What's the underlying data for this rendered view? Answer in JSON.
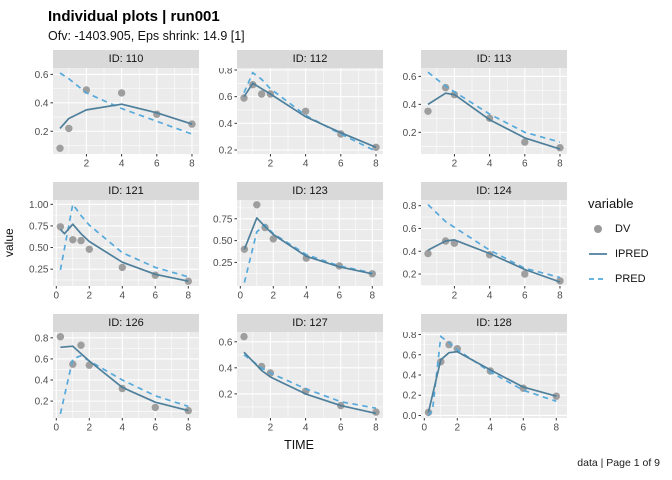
{
  "header": {
    "title": "Individual plots | run001",
    "subtitle": "Ofv: -1403.905, Eps shrink: 14.9 [1]"
  },
  "axes": {
    "x_label": "TIME",
    "y_label": "value"
  },
  "caption": "data | Page 1 of 9",
  "legend": {
    "title": "variable",
    "entries": [
      {
        "label": "DV",
        "type": "point"
      },
      {
        "label": "IPRED",
        "type": "solid"
      },
      {
        "label": "PRED",
        "type": "dashed"
      }
    ]
  },
  "colors": {
    "dv": "#9A9A9A",
    "ipred": "#4E7F9B",
    "pred": "#56A9DB",
    "panel_bg": "#EBEBEB",
    "strip_bg": "#D9D9D9",
    "grid": "#FFFFFF",
    "tick": "#333333",
    "tick_label": "#4D4D4D"
  },
  "chart_data": {
    "type": "line",
    "title": "Individual plots | run001",
    "xlabel": "TIME",
    "ylabel": "value",
    "legend_position": "right",
    "series_meaning": {
      "DV": "observed points",
      "IPRED": "solid line",
      "PRED": "dashed line"
    },
    "facets": [
      {
        "id_label": "ID: 110",
        "xlim": [
          0.1,
          8.4
        ],
        "ylim": [
          0.04,
          0.645
        ],
        "x_ticks": [
          2,
          4,
          6,
          8
        ],
        "x_tick_labels": [
          "2",
          "4",
          "6",
          "8"
        ],
        "y_ticks": [
          0.2,
          0.4,
          0.6
        ],
        "y_tick_labels": [
          "0.2",
          "0.4",
          "0.6"
        ],
        "dv": {
          "x": [
            0.5,
            1,
            2,
            4,
            6,
            8
          ],
          "y": [
            0.08,
            0.22,
            0.49,
            0.47,
            0.32,
            0.25
          ]
        },
        "ipred": {
          "x": [
            0.5,
            1,
            2,
            4,
            6,
            8
          ],
          "y": [
            0.22,
            0.29,
            0.35,
            0.39,
            0.33,
            0.25
          ]
        },
        "pred": {
          "x": [
            0.5,
            1,
            2,
            4,
            6,
            8
          ],
          "y": [
            0.61,
            0.57,
            0.47,
            0.36,
            0.27,
            0.18
          ]
        }
      },
      {
        "id_label": "ID: 112",
        "xlim": [
          0.1,
          8.4
        ],
        "ylim": [
          0.17,
          0.815
        ],
        "x_ticks": [
          2,
          4,
          6,
          8
        ],
        "x_tick_labels": [
          "2",
          "4",
          "6",
          "8"
        ],
        "y_ticks": [
          0.2,
          0.4,
          0.6,
          0.8
        ],
        "y_tick_labels": [
          "0.2",
          "0.4",
          "0.6",
          "0.8"
        ],
        "dv": {
          "x": [
            0.5,
            1,
            1.5,
            2,
            4,
            6,
            8
          ],
          "y": [
            0.59,
            0.69,
            0.62,
            0.62,
            0.49,
            0.32,
            0.22
          ]
        },
        "ipred": {
          "x": [
            0.5,
            1,
            1.5,
            2,
            4,
            6,
            8
          ],
          "y": [
            0.6,
            0.7,
            0.66,
            0.62,
            0.45,
            0.33,
            0.22
          ]
        },
        "pred": {
          "x": [
            0.5,
            1,
            1.5,
            2,
            4,
            6,
            8
          ],
          "y": [
            0.63,
            0.78,
            0.73,
            0.66,
            0.46,
            0.32,
            0.19
          ]
        }
      },
      {
        "id_label": "ID: 113",
        "xlim": [
          0.1,
          8.4
        ],
        "ylim": [
          0.045,
          0.66
        ],
        "x_ticks": [
          2,
          4,
          6,
          8
        ],
        "x_tick_labels": [
          "2",
          "4",
          "6",
          "8"
        ],
        "y_ticks": [
          0.2,
          0.4,
          0.6
        ],
        "y_tick_labels": [
          "0.2",
          "0.4",
          "0.6"
        ],
        "dv": {
          "x": [
            0.5,
            1.5,
            2,
            4,
            6,
            8
          ],
          "y": [
            0.35,
            0.52,
            0.47,
            0.3,
            0.13,
            0.09
          ]
        },
        "ipred": {
          "x": [
            0.5,
            1.5,
            2,
            4,
            6,
            8
          ],
          "y": [
            0.4,
            0.48,
            0.47,
            0.29,
            0.16,
            0.08
          ]
        },
        "pred": {
          "x": [
            0.5,
            1.5,
            2,
            4,
            6,
            8
          ],
          "y": [
            0.63,
            0.53,
            0.49,
            0.33,
            0.2,
            0.13
          ]
        }
      },
      {
        "id_label": "ID: 121",
        "xlim": [
          -0.2,
          8.65
        ],
        "ylim": [
          0.055,
          1.05
        ],
        "x_ticks": [
          0,
          2,
          4,
          6,
          8
        ],
        "x_tick_labels": [
          "0",
          "2",
          "4",
          "6",
          "8"
        ],
        "y_ticks": [
          0.25,
          0.5,
          0.75,
          1.0
        ],
        "y_tick_labels": [
          "0.25",
          "0.50",
          "0.75",
          "1.00"
        ],
        "dv": {
          "x": [
            0.25,
            1,
            1.5,
            2,
            4,
            6,
            8
          ],
          "y": [
            0.74,
            0.59,
            0.58,
            0.48,
            0.27,
            0.18,
            0.11
          ]
        },
        "ipred": {
          "x": [
            0.25,
            0.5,
            1,
            1.5,
            2,
            4,
            6,
            8
          ],
          "y": [
            0.71,
            0.66,
            0.77,
            0.66,
            0.57,
            0.33,
            0.19,
            0.11
          ]
        },
        "pred": {
          "x": [
            0.25,
            1,
            1.5,
            2,
            4,
            6,
            8
          ],
          "y": [
            0.24,
            1.0,
            0.87,
            0.76,
            0.44,
            0.27,
            0.16
          ]
        }
      },
      {
        "id_label": "ID: 123",
        "xlim": [
          -0.2,
          8.65
        ],
        "ylim": [
          -0.02,
          0.965
        ],
        "x_ticks": [
          0,
          2,
          4,
          6,
          8
        ],
        "x_tick_labels": [
          "0",
          "2",
          "4",
          "6",
          "8"
        ],
        "y_ticks": [
          0.25,
          0.5,
          0.75
        ],
        "y_tick_labels": [
          "0.25",
          "0.50",
          "0.75"
        ],
        "dv": {
          "x": [
            0.25,
            1,
            1.5,
            2,
            4,
            6,
            8
          ],
          "y": [
            0.4,
            0.91,
            0.65,
            0.52,
            0.3,
            0.21,
            0.12
          ]
        },
        "ipred": {
          "x": [
            0.25,
            1,
            1.5,
            2,
            4,
            6,
            8
          ],
          "y": [
            0.4,
            0.76,
            0.66,
            0.57,
            0.32,
            0.2,
            0.12
          ]
        },
        "pred": {
          "x": [
            0.25,
            1,
            1.5,
            2,
            4,
            6,
            8
          ],
          "y": [
            0.02,
            0.6,
            0.68,
            0.58,
            0.34,
            0.21,
            0.13
          ]
        }
      },
      {
        "id_label": "ID: 124",
        "xlim": [
          0.1,
          8.4
        ],
        "ylim": [
          0.095,
          0.85
        ],
        "x_ticks": [
          2,
          4,
          6,
          8
        ],
        "x_tick_labels": [
          "2",
          "4",
          "6",
          "8"
        ],
        "y_ticks": [
          0.2,
          0.4,
          0.6,
          0.8
        ],
        "y_tick_labels": [
          "0.2",
          "0.4",
          "0.6",
          "0.8"
        ],
        "dv": {
          "x": [
            0.5,
            1.5,
            2,
            4,
            6,
            8
          ],
          "y": [
            0.38,
            0.49,
            0.47,
            0.37,
            0.2,
            0.14
          ]
        },
        "ipred": {
          "x": [
            0.5,
            1.5,
            2,
            4,
            6,
            8
          ],
          "y": [
            0.41,
            0.49,
            0.5,
            0.38,
            0.24,
            0.13
          ]
        },
        "pred": {
          "x": [
            0.5,
            1.5,
            2,
            4,
            6,
            8
          ],
          "y": [
            0.81,
            0.66,
            0.61,
            0.41,
            0.25,
            0.17
          ]
        }
      },
      {
        "id_label": "ID: 126",
        "xlim": [
          -0.2,
          8.65
        ],
        "ylim": [
          0.04,
          0.855
        ],
        "x_ticks": [
          0,
          2,
          4,
          6,
          8
        ],
        "x_tick_labels": [
          "0",
          "2",
          "4",
          "6",
          "8"
        ],
        "y_ticks": [
          0.2,
          0.4,
          0.6,
          0.8
        ],
        "y_tick_labels": [
          "0.2",
          "0.4",
          "0.6",
          "0.8"
        ],
        "dv": {
          "x": [
            0.25,
            1,
            1.5,
            2,
            4,
            6,
            8
          ],
          "y": [
            0.81,
            0.55,
            0.73,
            0.54,
            0.32,
            0.14,
            0.11
          ]
        },
        "ipred": {
          "x": [
            0.25,
            1,
            1.5,
            2,
            4,
            6,
            8
          ],
          "y": [
            0.71,
            0.72,
            0.65,
            0.58,
            0.33,
            0.19,
            0.11
          ]
        },
        "pred": {
          "x": [
            0.25,
            1,
            1.5,
            2,
            4,
            6,
            8
          ],
          "y": [
            0.08,
            0.6,
            0.63,
            0.58,
            0.4,
            0.25,
            0.15
          ]
        }
      },
      {
        "id_label": "ID: 127",
        "xlim": [
          0.1,
          8.4
        ],
        "ylim": [
          0.015,
          0.675
        ],
        "x_ticks": [
          2,
          4,
          6,
          8
        ],
        "x_tick_labels": [
          "2",
          "4",
          "6",
          "8"
        ],
        "y_ticks": [
          0.2,
          0.4,
          0.6
        ],
        "y_tick_labels": [
          "0.2",
          "0.4",
          "0.6"
        ],
        "dv": {
          "x": [
            0.5,
            1.5,
            2,
            4,
            6,
            8
          ],
          "y": [
            0.64,
            0.41,
            0.36,
            0.22,
            0.11,
            0.06
          ]
        },
        "ipred": {
          "x": [
            0.5,
            1.5,
            2,
            4,
            6,
            8
          ],
          "y": [
            0.52,
            0.38,
            0.33,
            0.2,
            0.11,
            0.05
          ]
        },
        "pred": {
          "x": [
            0.5,
            1.5,
            2,
            4,
            6,
            8
          ],
          "y": [
            0.5,
            0.4,
            0.36,
            0.24,
            0.14,
            0.09
          ]
        }
      },
      {
        "id_label": "ID: 128",
        "xlim": [
          -0.2,
          8.65
        ],
        "ylim": [
          -0.025,
          0.825
        ],
        "x_ticks": [
          0,
          2,
          4,
          6,
          8
        ],
        "x_tick_labels": [
          "0",
          "2",
          "4",
          "6",
          "8"
        ],
        "y_ticks": [
          0.0,
          0.2,
          0.4,
          0.6,
          0.8
        ],
        "y_tick_labels": [
          "0.0",
          "0.2",
          "0.4",
          "0.6",
          "0.8"
        ],
        "dv": {
          "x": [
            0.25,
            1,
            1.5,
            2,
            4,
            6,
            8
          ],
          "y": [
            0.03,
            0.53,
            0.7,
            0.66,
            0.44,
            0.27,
            0.19
          ]
        },
        "ipred": {
          "x": [
            0.25,
            1,
            1.5,
            2,
            4,
            6,
            8
          ],
          "y": [
            0.03,
            0.55,
            0.62,
            0.63,
            0.45,
            0.28,
            0.19
          ]
        },
        "pred": {
          "x": [
            0.25,
            0.5,
            1,
            1.5,
            2,
            4,
            6,
            8
          ],
          "y": [
            0.0,
            0.05,
            0.78,
            0.72,
            0.65,
            0.43,
            0.25,
            0.14
          ]
        }
      }
    ]
  }
}
